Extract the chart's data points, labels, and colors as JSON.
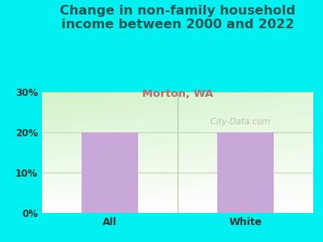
{
  "title": "Change in non-family household\nincome between 2000 and 2022",
  "subtitle": "Morton, WA",
  "categories": [
    "All",
    "White"
  ],
  "values": [
    20,
    20
  ],
  "bar_color": "#c8a8d8",
  "title_fontsize": 11.5,
  "subtitle_fontsize": 9.5,
  "subtitle_color": "#b07070",
  "title_color": "#1a5555",
  "tick_label_color": "#333333",
  "ylim": [
    0,
    30
  ],
  "yticks": [
    0,
    10,
    20,
    30
  ],
  "ytick_labels": [
    "0%",
    "10%",
    "20%",
    "30%"
  ],
  "background_outer": "#00efef",
  "watermark": "  City-Data.com",
  "bar_width": 0.42,
  "grid_color": "#c0d8b0",
  "separator_color": "#b0c8a0"
}
